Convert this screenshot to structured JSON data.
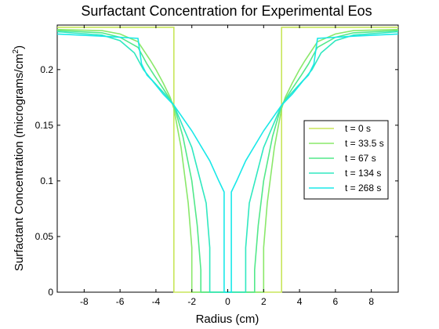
{
  "chart_data": {
    "type": "line",
    "title": "Surfactant Concentration for Experimental Eos",
    "xlabel": "Radius (cm)",
    "ylabel": "Surfactant Concentration (micrograms/cm",
    "ylabel_sup": "2",
    "ylabel_close": ")",
    "xlim": [
      -9.5,
      9.5
    ],
    "ylim": [
      0,
      0.24
    ],
    "xticks": [
      -8,
      -6,
      -4,
      -2,
      0,
      2,
      4,
      6,
      8
    ],
    "yticks": [
      0,
      0.05,
      0.1,
      0.15,
      0.2
    ],
    "ytick_labels": [
      "0",
      "0.05",
      "0.1",
      "0.15",
      "0.2"
    ],
    "grid": false,
    "legend_position": "right",
    "series": [
      {
        "name": "t = 0 s",
        "color": "#c8e65a",
        "x": [
          -9.5,
          -3.0,
          -3.0,
          3.0,
          3.0,
          9.5
        ],
        "y": [
          0.238,
          0.238,
          0,
          0,
          0.238,
          0.238
        ]
      },
      {
        "name": "t = 33.5 s",
        "color": "#8ae86a",
        "x": [
          -9.5,
          -7.0,
          -6.0,
          -5.0,
          -4.3,
          -4.0,
          -3.6,
          -3.2,
          -3.0,
          -2.6,
          -2.2,
          -2.0,
          -2.0,
          2.0,
          2.0,
          2.2,
          2.6,
          3.0,
          3.2,
          3.6,
          4.0,
          4.3,
          5.0,
          6.0,
          7.0,
          9.5
        ],
        "y": [
          0.236,
          0.235,
          0.232,
          0.225,
          0.208,
          0.2,
          0.188,
          0.175,
          0.165,
          0.13,
          0.08,
          0.04,
          0,
          0,
          0.04,
          0.08,
          0.13,
          0.165,
          0.175,
          0.188,
          0.2,
          0.208,
          0.225,
          0.232,
          0.235,
          0.236
        ]
      },
      {
        "name": "t = 67 s",
        "color": "#52e88a",
        "x": [
          -9.5,
          -7.0,
          -6.0,
          -5.0,
          -4.5,
          -4.1,
          -3.6,
          -3.0,
          -2.5,
          -2.0,
          -1.7,
          -1.5,
          -1.5,
          1.5,
          1.5,
          1.7,
          2.0,
          2.5,
          3.0,
          3.6,
          4.1,
          4.5,
          5.0,
          6.0,
          7.0,
          9.5
        ],
        "y": [
          0.235,
          0.233,
          0.229,
          0.22,
          0.205,
          0.195,
          0.183,
          0.168,
          0.14,
          0.1,
          0.06,
          0.02,
          0,
          0,
          0.02,
          0.06,
          0.1,
          0.14,
          0.168,
          0.183,
          0.195,
          0.205,
          0.22,
          0.229,
          0.233,
          0.235
        ]
      },
      {
        "name": "t = 134 s",
        "color": "#30e8c0",
        "x": [
          -9.5,
          -7.0,
          -6.0,
          -5.2,
          -4.7,
          -4.3,
          -3.5,
          -3.0,
          -2.0,
          -1.2,
          -1.0,
          -1.0,
          1.0,
          1.0,
          1.2,
          2.0,
          3.0,
          3.5,
          4.3,
          4.7,
          5.2,
          6.0,
          7.0,
          9.5
        ],
        "y": [
          0.234,
          0.231,
          0.226,
          0.215,
          0.2,
          0.192,
          0.178,
          0.168,
          0.13,
          0.08,
          0.04,
          0,
          0,
          0.04,
          0.08,
          0.13,
          0.168,
          0.178,
          0.192,
          0.2,
          0.215,
          0.226,
          0.231,
          0.234
        ]
      },
      {
        "name": "t = 268 s",
        "color": "#1ae8e8",
        "x": [
          -9.5,
          -7.0,
          -5.0,
          -4.8,
          -4.5,
          -4.2,
          -3.6,
          -3.0,
          -2.0,
          -1.0,
          -0.5,
          -0.2,
          -0.2,
          0.2,
          0.2,
          0.5,
          1.0,
          2.0,
          3.0,
          3.6,
          4.2,
          4.5,
          4.8,
          5.0,
          7.0,
          9.5
        ],
        "y": [
          0.232,
          0.23,
          0.228,
          0.205,
          0.195,
          0.19,
          0.178,
          0.168,
          0.145,
          0.118,
          0.1,
          0.09,
          0,
          0,
          0.09,
          0.1,
          0.118,
          0.145,
          0.168,
          0.178,
          0.19,
          0.195,
          0.205,
          0.228,
          0.23,
          0.232
        ]
      }
    ]
  }
}
